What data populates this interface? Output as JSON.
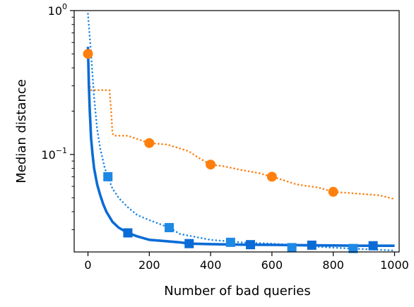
{
  "chart_data": {
    "type": "line",
    "xlabel": "Number of bad queries",
    "ylabel": "Median distance",
    "xlim": [
      -45,
      1015
    ],
    "ylim": [
      0.021,
      1.0
    ],
    "yscale": "log",
    "xticks": [
      0,
      200,
      400,
      600,
      800,
      1000
    ],
    "xtick_labels": [
      "0",
      "200",
      "400",
      "600",
      "800",
      "1000"
    ],
    "yticks": [
      {
        "value": 1.0,
        "base": "10",
        "exp": "0"
      },
      {
        "value": 0.1,
        "base": "10",
        "exp": "−1"
      }
    ],
    "grid": false,
    "series": [
      {
        "color": "#ff7f0e",
        "linestyle": "dotted",
        "marker": "circle",
        "x": [
          0,
          5,
          10,
          15,
          70,
          75,
          80,
          85,
          100,
          130,
          200,
          260,
          300,
          330,
          360,
          400,
          440,
          500,
          560,
          600,
          640,
          680,
          700,
          750,
          800,
          850,
          900,
          950,
          1000
        ],
        "y": [
          0.5,
          0.3,
          0.28,
          0.28,
          0.28,
          0.21,
          0.14,
          0.135,
          0.135,
          0.135,
          0.12,
          0.117,
          0.11,
          0.105,
          0.095,
          0.085,
          0.083,
          0.078,
          0.074,
          0.07,
          0.066,
          0.062,
          0.061,
          0.059,
          0.055,
          0.054,
          0.053,
          0.052,
          0.049
        ],
        "marker_x": [
          0,
          200,
          400,
          600,
          800
        ],
        "marker_y": [
          0.5,
          0.12,
          0.085,
          0.07,
          0.055
        ]
      },
      {
        "color": "#1e88e5",
        "linestyle": "dotted",
        "marker": "square",
        "x": [
          0,
          10,
          20,
          30,
          40,
          55,
          65,
          80,
          100,
          130,
          160,
          200,
          265,
          300,
          400,
          500,
          600,
          700,
          800,
          900,
          1000
        ],
        "y": [
          0.95,
          0.5,
          0.25,
          0.15,
          0.11,
          0.08,
          0.07,
          0.058,
          0.05,
          0.043,
          0.038,
          0.035,
          0.031,
          0.028,
          0.0255,
          0.0245,
          0.024,
          0.0232,
          0.0225,
          0.022,
          0.0215
        ],
        "marker_x": [
          65,
          265,
          465,
          665,
          865
        ],
        "marker_y": [
          0.07,
          0.031,
          0.0245,
          0.0225,
          0.0222
        ]
      },
      {
        "color": "#0a6bd6",
        "linestyle": "solid",
        "marker": "square",
        "x": [
          0,
          3,
          6,
          10,
          15,
          20,
          30,
          40,
          50,
          60,
          80,
          100,
          130,
          160,
          200,
          250,
          300,
          330,
          400,
          500,
          600,
          700,
          800,
          900,
          1000
        ],
        "y": [
          0.56,
          0.3,
          0.2,
          0.13,
          0.1,
          0.08,
          0.062,
          0.052,
          0.045,
          0.04,
          0.034,
          0.031,
          0.0285,
          0.027,
          0.0255,
          0.025,
          0.0245,
          0.024,
          0.0238,
          0.0236,
          0.0235,
          0.0234,
          0.0233,
          0.0232,
          0.0232
        ],
        "marker_x": [
          130,
          330,
          530,
          730,
          930
        ],
        "marker_y": [
          0.0285,
          0.024,
          0.0236,
          0.0234,
          0.0232
        ]
      }
    ]
  }
}
